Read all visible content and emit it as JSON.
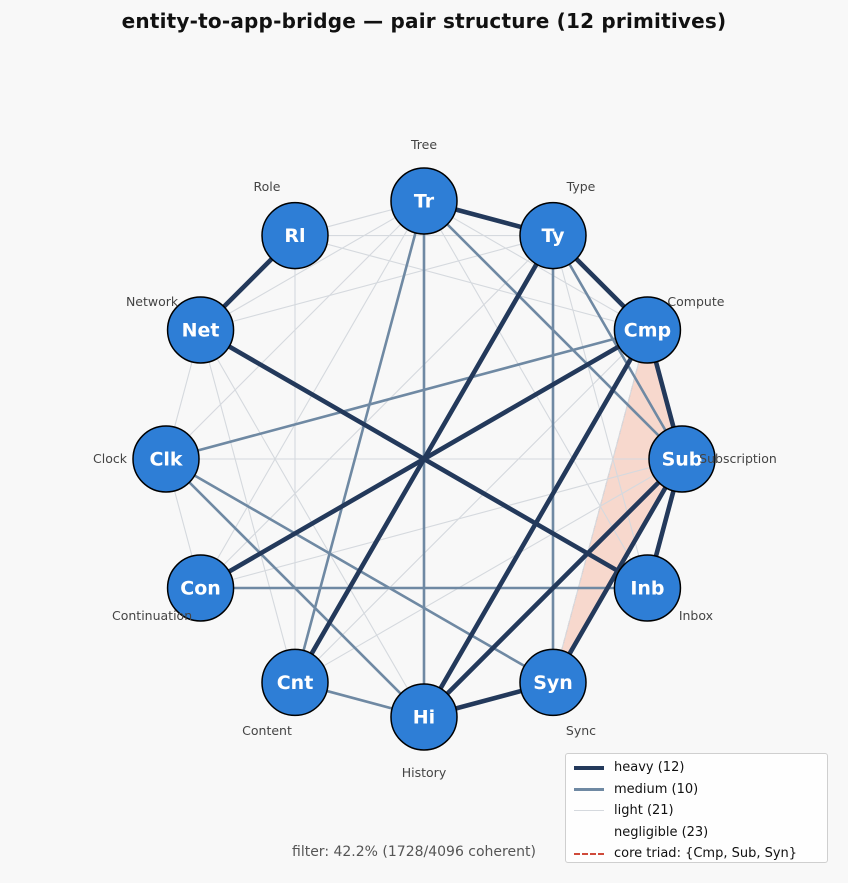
{
  "title": "entity-to-app-bridge — pair structure  (12 primitives)",
  "filter_text": "filter: 42.2%  (1728/4096 coherent)",
  "colors": {
    "node_fill": "#2e7ed6",
    "heavy": "#23395b",
    "medium": "#6f89a3",
    "light": "#d5d9de",
    "triad": "#cf4a3a",
    "triad_fill": "#f7d2c6"
  },
  "nodes": [
    {
      "id": "Tr",
      "label": "Tr",
      "full": "Tree"
    },
    {
      "id": "Ty",
      "label": "Ty",
      "full": "Type"
    },
    {
      "id": "Cmp",
      "label": "Cmp",
      "full": "Compute"
    },
    {
      "id": "Sub",
      "label": "Sub",
      "full": "Subscription"
    },
    {
      "id": "Inb",
      "label": "Inb",
      "full": "Inbox"
    },
    {
      "id": "Syn",
      "label": "Syn",
      "full": "Sync"
    },
    {
      "id": "Hi",
      "label": "Hi",
      "full": "History"
    },
    {
      "id": "Cnt",
      "label": "Cnt",
      "full": "Content"
    },
    {
      "id": "Con",
      "label": "Con",
      "full": "Continuation"
    },
    {
      "id": "Clk",
      "label": "Clk",
      "full": "Clock"
    },
    {
      "id": "Net",
      "label": "Net",
      "full": "Network"
    },
    {
      "id": "Rl",
      "label": "Rl",
      "full": "Role"
    }
  ],
  "edges": {
    "heavy": [
      [
        "Tr",
        "Ty"
      ],
      [
        "Ty",
        "Cmp"
      ],
      [
        "Cmp",
        "Sub"
      ],
      [
        "Sub",
        "Inb"
      ],
      [
        "Sub",
        "Syn"
      ],
      [
        "Syn",
        "Hi"
      ],
      [
        "Rl",
        "Net"
      ],
      [
        "Net",
        "Inb"
      ],
      [
        "Cmp",
        "Hi"
      ],
      [
        "Sub",
        "Hi"
      ],
      [
        "Ty",
        "Cnt"
      ],
      [
        "Cmp",
        "Con"
      ]
    ],
    "medium": [
      [
        "Tr",
        "Hi"
      ],
      [
        "Tr",
        "Cnt"
      ],
      [
        "Tr",
        "Sub"
      ],
      [
        "Ty",
        "Syn"
      ],
      [
        "Ty",
        "Sub"
      ],
      [
        "Cmp",
        "Clk"
      ],
      [
        "Con",
        "Inb"
      ],
      [
        "Clk",
        "Syn"
      ],
      [
        "Clk",
        "Hi"
      ],
      [
        "Cnt",
        "Hi"
      ]
    ],
    "light": [
      [
        "Tr",
        "Rl"
      ],
      [
        "Tr",
        "Net"
      ],
      [
        "Tr",
        "Clk"
      ],
      [
        "Tr",
        "Con"
      ],
      [
        "Tr",
        "Cmp"
      ],
      [
        "Tr",
        "Inb"
      ],
      [
        "Rl",
        "Ty"
      ],
      [
        "Rl",
        "Cmp"
      ],
      [
        "Rl",
        "Cnt"
      ],
      [
        "Net",
        "Ty"
      ],
      [
        "Net",
        "Clk"
      ],
      [
        "Net",
        "Hi"
      ],
      [
        "Clk",
        "Sub"
      ],
      [
        "Con",
        "Ty"
      ],
      [
        "Con",
        "Sub"
      ],
      [
        "Cnt",
        "Cmp"
      ],
      [
        "Cnt",
        "Sub"
      ],
      [
        "Ty",
        "Inb"
      ],
      [
        "Cmp",
        "Syn"
      ],
      [
        "Con",
        "Clk"
      ],
      [
        "Net",
        "Cnt"
      ]
    ]
  },
  "core_triad": [
    "Cmp",
    "Sub",
    "Syn"
  ],
  "legend": [
    {
      "style": "heavy",
      "label": "heavy (12)"
    },
    {
      "style": "medium",
      "label": "medium (10)"
    },
    {
      "style": "light",
      "label": "light (21)"
    },
    {
      "style": "none",
      "label": "negligible (23)"
    },
    {
      "style": "triad",
      "label": "core triad: {Cmp, Sub, Syn}"
    }
  ]
}
